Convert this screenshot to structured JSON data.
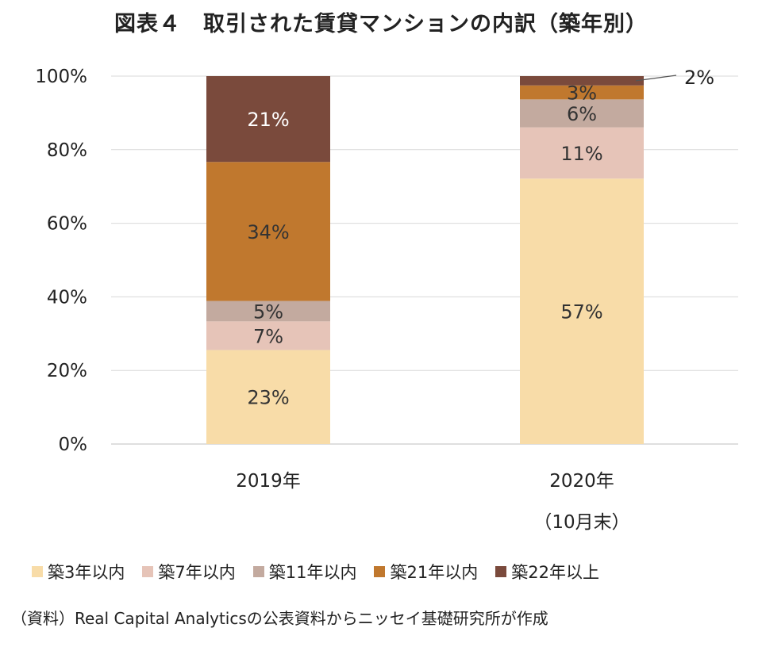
{
  "title": "図表４　取引された賃貸マンションの内訳（築年別）",
  "source": "（資料）Real Capital Analyticsの公表資料からニッセイ基礎研究所が作成",
  "chart_data": {
    "type": "bar",
    "stacked": true,
    "percent_stacked": true,
    "title": "図表４　取引された賃貸マンションの内訳（築年別）",
    "categories": [
      {
        "label": "2019年",
        "sublabel": ""
      },
      {
        "label": "2020年",
        "sublabel": "（10月末）"
      }
    ],
    "y_ticks": [
      "0%",
      "20%",
      "40%",
      "60%",
      "80%",
      "100%"
    ],
    "ylim": [
      0,
      100
    ],
    "grid": true,
    "legend_position": "bottom",
    "series": [
      {
        "name": "築3年以内",
        "color": "#f8dca8",
        "label_color": "#333333",
        "values": [
          23,
          57
        ],
        "labels": [
          "23%",
          "57%"
        ]
      },
      {
        "name": "築7年以内",
        "color": "#e6c4b8",
        "label_color": "#333333",
        "values": [
          7,
          11
        ],
        "labels": [
          "7%",
          "11%"
        ]
      },
      {
        "name": "築11年以内",
        "color": "#c3aa9f",
        "label_color": "#333333",
        "values": [
          5,
          6
        ],
        "labels": [
          "5%",
          "6%"
        ]
      },
      {
        "name": "築21年以内",
        "color": "#c0782e",
        "label_color": "#333333",
        "values": [
          34,
          3
        ],
        "labels": [
          "34%",
          "3%"
        ]
      },
      {
        "name": "築22年以上",
        "color": "#7a4a3c",
        "label_color": "#ffffff",
        "values": [
          21,
          2
        ],
        "labels": [
          "21%",
          "2%"
        ]
      }
    ],
    "callouts": [
      {
        "series": 4,
        "category": 1,
        "text": "2%"
      }
    ]
  }
}
